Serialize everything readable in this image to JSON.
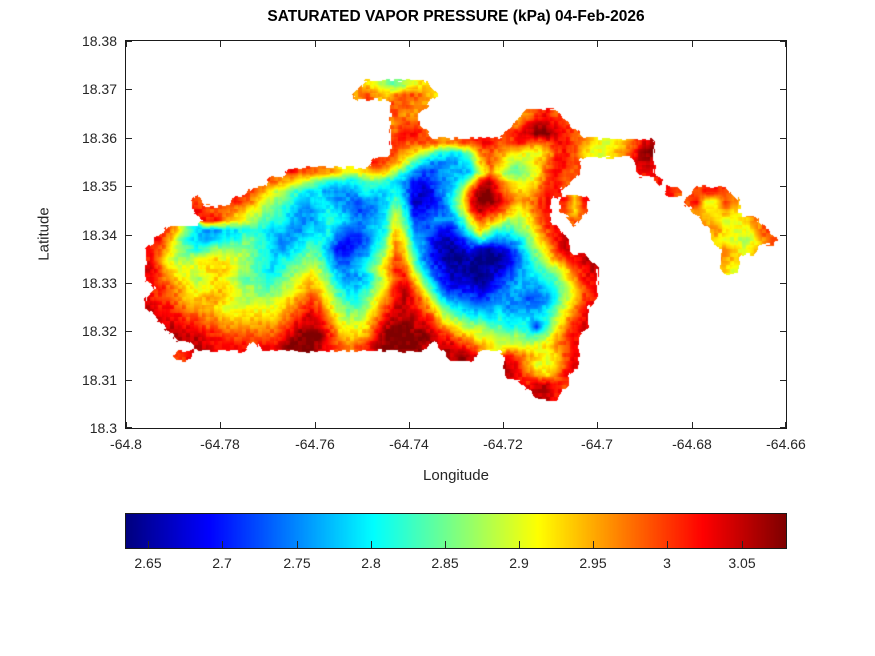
{
  "chart_data": {
    "type": "heatmap",
    "title": "SATURATED VAPOR PRESSURE (kPa) 04-Feb-2026",
    "xlabel": "Longitude",
    "ylabel": "Latitude",
    "xlim": [
      -64.8,
      -64.66
    ],
    "ylim": [
      18.3,
      18.38
    ],
    "x_ticks": [
      -64.8,
      -64.78,
      -64.76,
      -64.74,
      -64.72,
      -64.7,
      -64.68,
      -64.66
    ],
    "y_ticks": [
      18.3,
      18.31,
      18.32,
      18.33,
      18.34,
      18.35,
      18.36,
      18.37,
      18.38
    ],
    "grid_lines": false,
    "colormap": "jet",
    "colorbar": {
      "orientation": "horizontal",
      "position": "south",
      "ticks": [
        2.65,
        2.7,
        2.75,
        2.8,
        2.85,
        2.9,
        2.95,
        3,
        3.05
      ],
      "vmin": 2.635,
      "vmax": 3.08,
      "units": "kPa"
    },
    "grid": {
      "comment": "Island raster, 70 cols x 40 rows. '.' = sea. Hex char 0-f = level; value kPa = 2.635 + (level/15)*0.445. Row 0 = lat 18.38 (top), col 0 = lon -64.8 (left).",
      "ncols": 70,
      "nrows": 40,
      "lon_min": -64.8,
      "lon_max": -64.66,
      "lat_min": 18.3,
      "lat_max": 18.38,
      "levels": 16,
      "rows": [
        "......................................................................",
        "......................................................................",
        "......................................................................",
        "......................................................................",
        ".........................a98789a......................................",
        "........................bcbabccba.....................................",
        "............................ccbb......................................",
        "............................cbb...........bcdc........................",
        "............................bcc..........bdeedc.......................",
        "............................cddc........cdeffedc......................",
        "............................dccccbbccddccdcbcddcba99abde..............",
        "............................cba976568bcbaa99acdca99abcef..............",
        "..........................dcb97544456acb989abddc......ee..............",
        ".................dccbba99aba8643345458b97789cdcc......dd..............",
        "...............cba9876656776542234469deca99acdc.........d.............",
        ".............cb987655444565564212458cffdbaabdd...........dc.cddc......",
        ".......c...dcb9876556544344575112369dffecbbcd.dad..........cd99cb.....",
        ".......dcccba98765445654334586223358cedcb9acd.cac...........baaba.....",
        "........ddba9876654456654456973344469cba889bd..c.............ba99ab...",
        "....ca7544556665544556433456a84332247a86678acd................ba99ac..",
        "...db86545667765445665322357b954211246544579bde...............a9989bc.",
        "..dca87678888765456764223468ba64210121012468ace................ba9a...",
        "..db98899a998765667875334579cb742100100013579bcde..............ba.....",
        "..eca999aaa9876567898644568adc8532110011245678acde.............a9.....",
        "..dcba989a987766789a97544579cda7421110123455679bdd....................",
        "...dcba99aa9887789aba865568adec9632221234544568acd....................",
        "..dccbaabba988889abcb976679bdedb854332344433468acd....................",
        "..eddcbbaa999999abcdca8778aceedca76544454444579bd.....................",
        "...eddccbbaaaaaabcdedb9889bdeeedc9876656555568acd.....................",
        "....eeddccbbbbbbcdeeeca99aceffeedba98877666369bde.....................",
        ".....eeeddccccccdefffdbaabdfffffedcba99888778acd......................",
        ".......eedddd.ddefffedcbcdeffffe.eedcba99999abcd......................",
        ".....cd...........................efe...dcba9acd......................",
        "........................................edb99ace......................",
        "........................................edcbabd.......................",
        "..........................................deedc.......................",
        "...........................................eed........................",
        "......................................................................",
        "......................................................................",
        "......................................................................"
      ]
    }
  },
  "colors": {
    "background": "#ffffff",
    "axis": "#262626",
    "box": "#1a1a1a",
    "title": "#000000"
  }
}
